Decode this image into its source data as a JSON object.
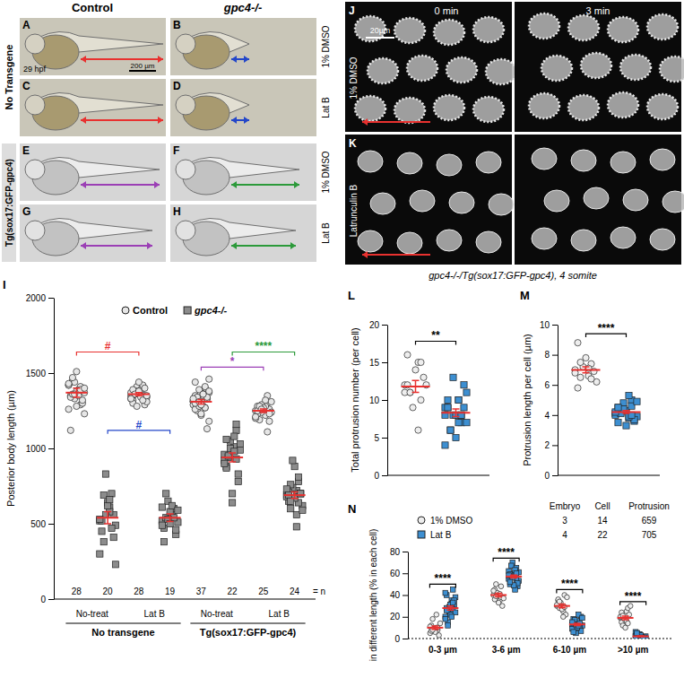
{
  "chart_data": [
    {
      "type": "scatter",
      "panel": "I",
      "y_label": "Posterior body length (µm)",
      "ylim": [
        0,
        2000
      ],
      "yticks": [
        0,
        500,
        1000,
        1500,
        2000
      ],
      "categories": [
        "No-treat",
        null,
        "Lat B",
        null,
        "No-treat",
        null,
        "Lat B",
        null
      ],
      "groups": [
        "No transgene",
        "Tg(sox17:GFP-gpc4)"
      ],
      "n": [
        28,
        20,
        28,
        19,
        37,
        22,
        25,
        24
      ],
      "n_label": "= n",
      "legend": "top",
      "series": [
        {
          "name": "Control",
          "marker": "circle",
          "color": "#e6e6e6",
          "values": [
            [
              1420,
              1380,
              1350,
              1290,
              1450,
              1400,
              1330,
              1370,
              1510,
              1260,
              1390,
              1340,
              1410,
              1360,
              1300,
              1440,
              1230,
              1380,
              1420,
              1350,
              1120,
              1390,
              1470,
              1320,
              1360,
              1400,
              1280,
              1430
            ],
            null,
            [
              1350,
              1380,
              1320,
              1400,
              1360,
              1290,
              1410,
              1340,
              1370,
              1330,
              1390,
              1300,
              1420,
              1360,
              1350,
              1380,
              1310,
              1440,
              1370,
              1340,
              1390,
              1320,
              1360,
              1400,
              1280,
              1350,
              1380,
              1330
            ],
            null,
            [
              1310,
              1280,
              1350,
              1400,
              1250,
              1330,
              1290,
              1370,
              1220,
              1310,
              1360,
              1440,
              1270,
              1300,
              1330,
              1390,
              1180,
              1320,
              1290,
              1350,
              1260,
              1410,
              1300,
              1340,
              1280,
              1460,
              1230,
              1320,
              1360,
              1300,
              1270,
              1340,
              1130,
              1310,
              1380,
              1290,
              1330
            ],
            null,
            [
              1250,
              1220,
              1280,
              1300,
              1190,
              1260,
              1240,
              1310,
              1270,
              1200,
              1280,
              1230,
              1350,
              1260,
              1180,
              1290,
              1240,
              1270,
              1210,
              1320,
              1250,
              1110,
              1280,
              1230,
              1260
            ],
            null
          ],
          "mean": [
            1370,
            null,
            1360,
            null,
            1310,
            null,
            1250,
            null
          ],
          "error": [
            30,
            null,
            10,
            null,
            15,
            null,
            12,
            null
          ]
        },
        {
          "name": "gpc4-/-",
          "marker": "square",
          "color": "#8c8c8c",
          "values": [
            null,
            [
              520,
              610,
              450,
              700,
              380,
              560,
              830,
              490,
              640,
              300,
              580,
              520,
              470,
              690,
              410,
              560,
              230,
              620,
              530,
              660
            ],
            null,
            [
              520,
              560,
              470,
              600,
              540,
              430,
              650,
              510,
              580,
              490,
              620,
              380,
              540,
              700,
              460,
              530,
              590,
              500,
              610
            ],
            null,
            [
              960,
              1010,
              880,
              1120,
              940,
              830,
              1050,
              990,
              700,
              920,
              1080,
              870,
              1160,
              950,
              780,
              1000,
              1030,
              640,
              900,
              980,
              1060,
              930
            ],
            null,
            [
              690,
              720,
              650,
              780,
              600,
              700,
              740,
              620,
              880,
              680,
              560,
              710,
              640,
              760,
              700,
              920,
              590,
              670,
              730,
              480,
              690,
              810,
              650,
              700
            ]
          ],
          "mean": [
            null,
            540,
            null,
            540,
            null,
            940,
            null,
            690
          ],
          "error": [
            null,
            40,
            null,
            25,
            null,
            30,
            null,
            22
          ]
        }
      ],
      "annotations": [
        {
          "text": "#",
          "color": "#e8312f",
          "x": [
            0,
            2
          ],
          "y": 1640
        },
        {
          "text": "#",
          "color": "#2346c9",
          "x": [
            1,
            3
          ],
          "y": 1120
        },
        {
          "text": "*",
          "color": "#9b3fb5",
          "x": [
            4,
            6
          ],
          "y": 1540
        },
        {
          "text": "****",
          "color": "#2c9a3a",
          "x": [
            5,
            7
          ],
          "y": 1640
        }
      ]
    },
    {
      "type": "scatter",
      "panel": "L",
      "y_label": "Total protrusion number (per cell)",
      "ylim": [
        0,
        20
      ],
      "yticks": [
        0,
        5,
        10,
        15,
        20
      ],
      "series": [
        {
          "marker": "circle",
          "color": "#eeeeee",
          "values": [
            [
              12,
              15,
              16,
              10,
              11,
              13,
              9,
              12,
              14,
              11,
              6,
              12,
              15,
              11
            ]
          ],
          "mean": [
            11.8
          ],
          "error": [
            0.8
          ]
        },
        {
          "marker": "square",
          "color": "#3d8fd1",
          "values": [
            [
              8,
              10,
              9,
              7,
              6,
              12,
              8,
              11,
              5,
              9,
              7,
              10,
              8,
              6,
              9,
              13,
              7,
              8,
              4,
              10,
              9,
              8
            ]
          ],
          "mean": [
            8.3
          ],
          "error": [
            0.5
          ]
        }
      ],
      "annotations": [
        {
          "text": "**",
          "color": "#000000",
          "x": [
            0,
            1
          ],
          "y": 17.8
        }
      ]
    },
    {
      "type": "scatter",
      "panel": "M",
      "y_label": "Protrusion length per cell (µm)",
      "ylim": [
        0,
        10
      ],
      "yticks": [
        0,
        2,
        4,
        6,
        8,
        10
      ],
      "series": [
        {
          "marker": "circle",
          "color": "#eeeeee",
          "values": [
            [
              7.0,
              6.6,
              8.8,
              7.4,
              6.5,
              6.9,
              7.2,
              6.2,
              7.8,
              6.8,
              7.1,
              5.8,
              6.4,
              7.5
            ]
          ],
          "mean": [
            7.0
          ],
          "error": [
            0.2
          ]
        },
        {
          "marker": "square",
          "color": "#3d8fd1",
          "values": [
            [
              4.1,
              3.8,
              4.5,
              5.0,
              4.2,
              3.6,
              4.8,
              3.9,
              4.3,
              4.0,
              5.3,
              3.5,
              4.6,
              4.1,
              3.7,
              4.4,
              4.9,
              3.3,
              4.2,
              3.9,
              4.5,
              4.0
            ]
          ],
          "mean": [
            4.2
          ],
          "error": [
            0.1
          ]
        }
      ],
      "annotations": [
        {
          "text": "****",
          "color": "#000000",
          "x": [
            0,
            1
          ],
          "y": 9.4
        }
      ]
    },
    {
      "type": "scatter",
      "panel": "N",
      "y_label": "in different length (% in each cell)",
      "ylim": [
        0,
        80
      ],
      "yticks": [
        0,
        20,
        40,
        60,
        80
      ],
      "categories": [
        "0-3 µm",
        "3-6 µm",
        "6-10 µm",
        ">10 µm"
      ],
      "series": [
        {
          "name": "1% DMSO",
          "marker": "circle",
          "color": "#eeeeee",
          "values": [
            [
              5,
              10,
              12,
              8,
              18,
              3,
              9,
              14,
              6,
              11,
              22,
              7,
              10,
              8
            ],
            [
              40,
              35,
              45,
              38,
              50,
              30,
              42,
              37,
              33,
              44,
              41,
              36,
              48,
              39
            ],
            [
              30,
              25,
              35,
              40,
              28,
              22,
              33,
              38,
              27,
              31,
              20,
              36,
              29,
              34
            ],
            [
              19,
              25,
              15,
              28,
              12,
              22,
              18,
              30,
              10,
              20,
              16,
              24,
              14,
              21
            ]
          ],
          "mean": [
            10,
            40,
            30,
            19
          ],
          "error": [
            1.5,
            1.6,
            1.7,
            1.6
          ]
        },
        {
          "name": "Lat B",
          "marker": "square",
          "color": "#3d8fd1",
          "values": [
            [
              20,
              35,
              28,
              45,
              15,
              30,
              25,
              38,
              22,
              18,
              32,
              40,
              27,
              12,
              35,
              29,
              24,
              31,
              42,
              20,
              26,
              33
            ],
            [
              55,
              60,
              50,
              65,
              58,
              48,
              70,
              53,
              57,
              62,
              45,
              59,
              54,
              67,
              51,
              56,
              61,
              49,
              58,
              63,
              52,
              60
            ],
            [
              13,
              10,
              18,
              8,
              15,
              20,
              5,
              12,
              16,
              9,
              22,
              14,
              11,
              17,
              7,
              13,
              19,
              10,
              15,
              12,
              6,
              14
            ],
            [
              2,
              0,
              5,
              1,
              3,
              0,
              4,
              2,
              0,
              6,
              1,
              3,
              0,
              2,
              1,
              4,
              0,
              3,
              2,
              1,
              5,
              0
            ]
          ],
          "mean": [
            28,
            57,
            13,
            2
          ],
          "error": [
            1.9,
            1.4,
            1.1,
            0.4
          ]
        }
      ],
      "annotations": [
        {
          "text": "****",
          "color": "#000000",
          "x": 0,
          "y": 50
        },
        {
          "text": "****",
          "color": "#000000",
          "x": 1,
          "y": 74
        },
        {
          "text": "****",
          "color": "#000000",
          "x": 2,
          "y": 45
        },
        {
          "text": "****",
          "color": "#000000",
          "x": 3,
          "y": 34
        }
      ],
      "table": {
        "columns": [
          "Embryo",
          "Cell",
          "Protrusion"
        ],
        "rows": [
          [
            3,
            14,
            659
          ],
          [
            4,
            22,
            705
          ]
        ]
      }
    }
  ],
  "figure": {
    "panels": [
      "A",
      "B",
      "C",
      "D",
      "E",
      "F",
      "G",
      "H",
      "J",
      "K"
    ],
    "columns": [
      "Control",
      "gpc4-/-"
    ],
    "rows": [
      "No Transgene",
      "Tg(sox17:GFP-gpc4)"
    ],
    "treatments": [
      "1% DMSO",
      "Lat B",
      "1% DMSO",
      "Lat B"
    ],
    "stage": "29 hpf",
    "scale_bar": "200 µm",
    "times": [
      "0 min",
      "3 min"
    ],
    "jk_treatments": [
      "1% DMSO",
      "Latrunculin B"
    ],
    "jk_scale_bar": "20µm",
    "jk_caption": "gpc4-/-/Tg(sox17:GFP-gpc4), 4 somite"
  }
}
